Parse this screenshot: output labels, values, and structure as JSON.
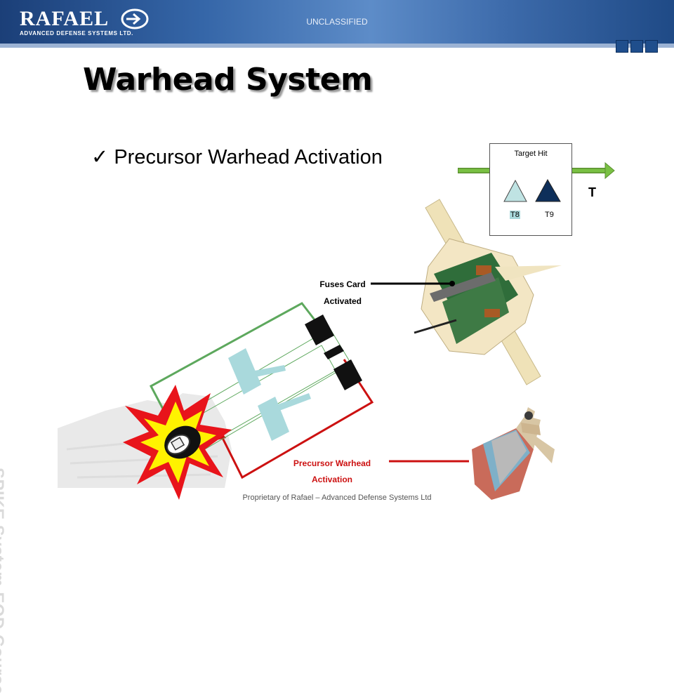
{
  "header": {
    "logo_name": "RAFAEL",
    "logo_subtitle": "ADVANCED DEFENSE SYSTEMS LTD.",
    "classification": "UNCLASSIFIED"
  },
  "slide": {
    "title": "Warhead System",
    "bullet_check": "✓",
    "bullet": "Precursor Warhead Activation",
    "sidebar_text": "SPIKE System EOD Course"
  },
  "timeline": {
    "box_title": "Target Hit",
    "t8_label": "T8",
    "t9_label": "T9",
    "axis_label": "T",
    "colors": {
      "arrow": "#79c043",
      "t8": "#bfe3e3",
      "t9": "#0e2f5a"
    }
  },
  "diagram": {
    "fuses_card_label_line1": "Fuses Card",
    "fuses_card_label_line2": "Activated",
    "precursor_label_line1": "Precursor Warhead",
    "precursor_label_line2": "Activation",
    "colors": {
      "green_wire": "#5da85d",
      "red_wire": "#cc1111",
      "explosion_red": "#e8141b",
      "explosion_yellow": "#fff200"
    }
  },
  "footer": {
    "text": "Proprietary of Rafael – Advanced Defense Systems Ltd"
  }
}
